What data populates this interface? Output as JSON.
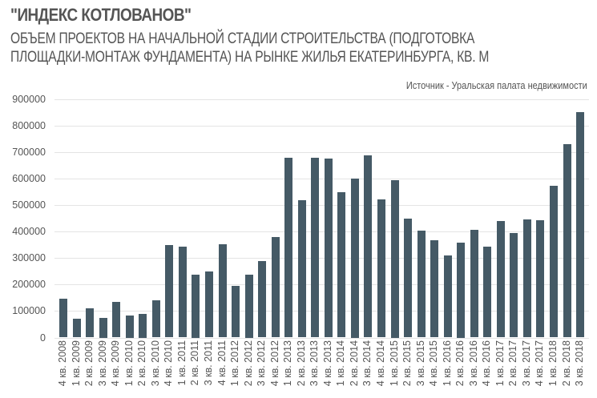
{
  "header": {
    "title": "\"ИНДЕКС КОТЛОВАНОВ\"",
    "subtitle_line1": "ОБЪЕМ ПРОЕКТОВ НА НАЧАЛЬНОЙ СТАДИИ СТРОИТЕЛЬСТВА (ПОДГОТОВКА",
    "subtitle_line2": "ПЛОЩАДКИ-МОНТАЖ ФУНДАМЕНТА) НА РЫНКЕ ЖИЛЬЯ ЕКАТЕРИНБУРГА, КВ. М",
    "source": "Источник - Уральская палата недвижимости"
  },
  "colors": {
    "bar": "#455a66",
    "text": "#555555",
    "grid": "#e4e4e4"
  },
  "chart_data": {
    "type": "bar",
    "title": "\"ИНДЕКС КОТЛОВАНОВ\"",
    "subtitle": "ОБЪЕМ ПРОЕКТОВ НА НАЧАЛЬНОЙ СТАДИИ СТРОИТЕЛЬСТВА (ПОДГОТОВКА ПЛОЩАДКИ-МОНТАЖ ФУНДАМЕНТА) НА РЫНКЕ ЖИЛЬЯ ЕКАТЕРИНБУРГА, КВ. М",
    "annotation": "Источник - Уральская палата недвижимости",
    "xlabel": "",
    "ylabel": "",
    "ylim": [
      0,
      900000
    ],
    "yticks": [
      "900000",
      "800000",
      "700000",
      "600000",
      "500000",
      "400000",
      "300000",
      "200000",
      "100000",
      "0"
    ],
    "grid": true,
    "legend": "none",
    "categories": [
      "4 кв. 2008",
      "1 кв. 2009",
      "2 кв. 2009",
      "3 кв. 2009",
      "4 кв. 2009",
      "1 кв. 2010",
      "2 кв. 2010",
      "3 кв. 2010",
      "4 кв. 2010",
      "1 кв. 2011",
      "2 кв. 2011",
      "3 кв. 2011",
      "4 кв. 2011",
      "1 кв. 2012",
      "2 кв. 2012",
      "3 кв. 2012",
      "4 кв. 2012",
      "1 кв. 2013",
      "2 кв. 2013",
      "3 кв. 2013",
      "4 кв. 2013",
      "1 кв. 2014",
      "2 кв. 2014",
      "3 кв. 2014",
      "4 кв. 2014",
      "1 кв. 2015",
      "2 кв. 2015",
      "3 кв. 2015",
      "4 кв. 2015",
      "1 кв. 2016",
      "2 кв. 2016",
      "3 кв. 2016",
      "4 кв. 2016",
      "1 кв. 2017",
      "2 кв. 2017",
      "3 кв. 2017",
      "4 кв. 2017",
      "1 кв. 2018",
      "2 кв. 2018",
      "3 кв. 2018"
    ],
    "values": [
      146000,
      70000,
      110000,
      74000,
      134000,
      83000,
      89000,
      140000,
      349000,
      343000,
      237000,
      249000,
      353000,
      195000,
      237000,
      289000,
      380000,
      677000,
      519000,
      677000,
      674000,
      549000,
      601000,
      686000,
      522000,
      595000,
      449000,
      404000,
      368000,
      310000,
      358000,
      407000,
      343000,
      440000,
      395000,
      446000,
      443000,
      573000,
      730000,
      851000
    ]
  }
}
